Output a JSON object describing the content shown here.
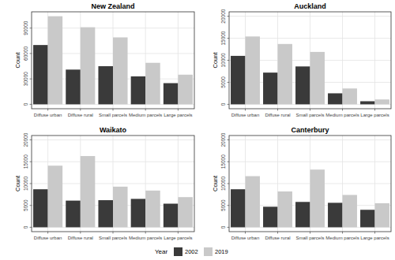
{
  "chart_data": [
    {
      "type": "bar",
      "title": "New Zealand",
      "y_label": "Count",
      "categories": [
        "Diffuse urban",
        "Diffuse rural",
        "Small parcels",
        "Medium parcels",
        "Large parcels"
      ],
      "series": [
        {
          "name": "2002",
          "color": "#3a3a3a",
          "values": [
            70000,
            41000,
            45000,
            33000,
            25000
          ]
        },
        {
          "name": "2019",
          "color": "#c9c9c9",
          "values": [
            104000,
            91000,
            79000,
            49000,
            35000
          ]
        }
      ],
      "ylim": [
        -5200,
        109200
      ],
      "yticks": [
        0,
        30000,
        60000,
        90000
      ],
      "grid": true,
      "legend": "bottom",
      "legend_title": "Year"
    },
    {
      "type": "bar",
      "title": "Auckland",
      "y_label": "Count",
      "categories": [
        "Diffuse urban",
        "Diffuse rural",
        "Small parcels",
        "Medium parcels",
        "Large parcels"
      ],
      "series": [
        {
          "name": "2002",
          "color": "#3a3a3a",
          "values": [
            11000,
            7200,
            8600,
            2500,
            700
          ]
        },
        {
          "name": "2019",
          "color": "#c9c9c9",
          "values": [
            15400,
            13700,
            11900,
            3600,
            1100
          ]
        }
      ],
      "ylim": [
        -1000,
        21000
      ],
      "yticks": [
        0,
        5000,
        10000,
        15000,
        20000
      ],
      "grid": true,
      "legend": "bottom"
    },
    {
      "type": "bar",
      "title": "Waikato",
      "y_label": "Count",
      "categories": [
        "Diffuse urban",
        "Diffuse rural",
        "Small parcels",
        "Medium parcels",
        "Large parcels"
      ],
      "series": [
        {
          "name": "2002",
          "color": "#3a3a3a",
          "values": [
            8700,
            6100,
            6200,
            6500,
            5400
          ]
        },
        {
          "name": "2019",
          "color": "#c9c9c9",
          "values": [
            14100,
            16300,
            9300,
            8400,
            6900
          ]
        }
      ],
      "ylim": [
        -1000,
        21000
      ],
      "yticks": [
        0,
        5000,
        10000,
        15000,
        20000
      ],
      "grid": true,
      "legend": "bottom"
    },
    {
      "type": "bar",
      "title": "Canterbury",
      "y_label": "Count",
      "categories": [
        "Diffuse urban",
        "Diffuse rural",
        "Small parcels",
        "Medium parcels",
        "Large parcels"
      ],
      "series": [
        {
          "name": "2002",
          "color": "#3a3a3a",
          "values": [
            8700,
            4700,
            5800,
            5600,
            4000
          ]
        },
        {
          "name": "2019",
          "color": "#c9c9c9",
          "values": [
            11700,
            8200,
            13200,
            7400,
            5500
          ]
        }
      ],
      "ylim": [
        -1000,
        21000
      ],
      "yticks": [
        0,
        5000,
        10000,
        15000,
        20000
      ],
      "grid": true,
      "legend": "bottom"
    }
  ]
}
